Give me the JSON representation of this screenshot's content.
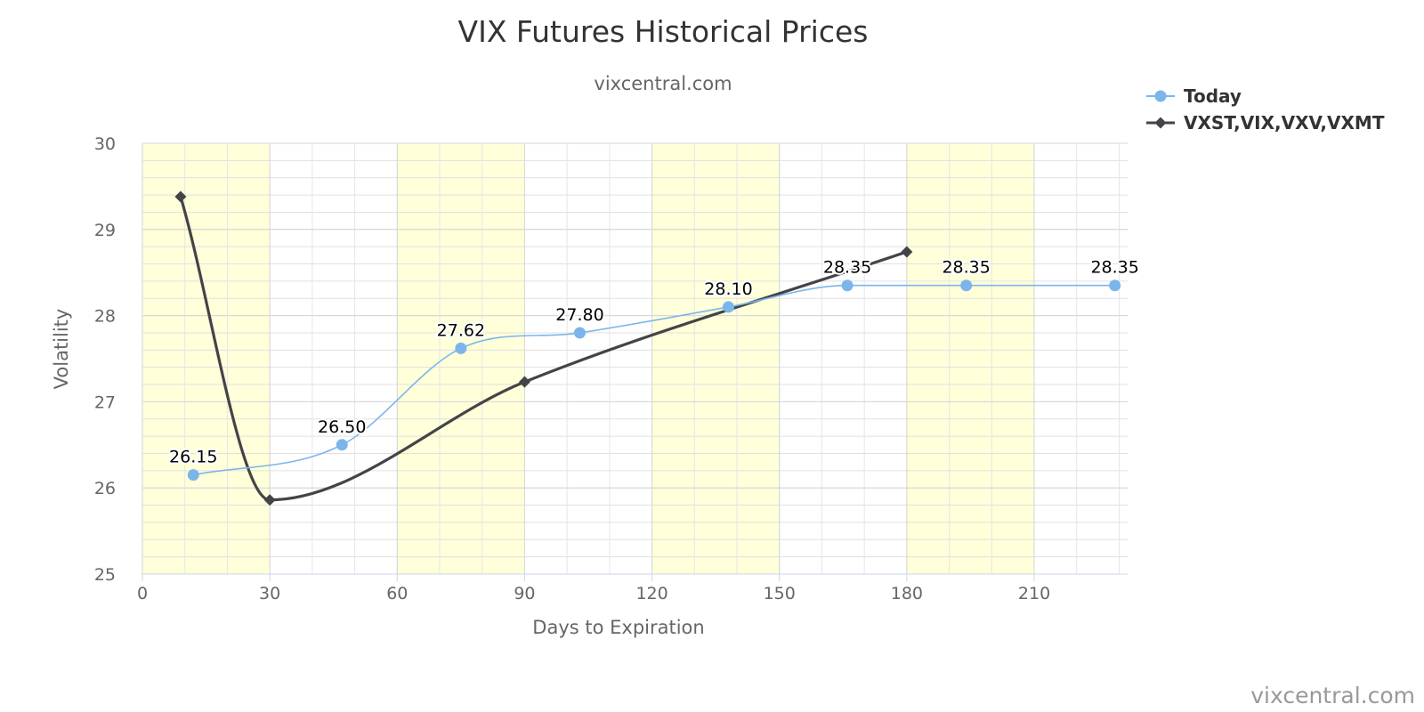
{
  "chart_data": {
    "type": "line",
    "title": "VIX Futures Historical Prices",
    "subtitle": "vixcentral.com",
    "credit": "vixcentral.com",
    "xlabel": "Days to Expiration",
    "ylabel": "Volatility",
    "xlim": [
      0,
      232
    ],
    "ylim": [
      25,
      30
    ],
    "x_ticks": [
      0,
      30,
      60,
      90,
      120,
      150,
      180,
      210
    ],
    "y_ticks": [
      25,
      26,
      27,
      28,
      29,
      30
    ],
    "x_minor_step": 10,
    "y_minor_step": 0.2,
    "bands": [
      [
        0,
        30
      ],
      [
        60,
        90
      ],
      [
        120,
        150
      ],
      [
        180,
        210
      ]
    ],
    "band_color": "#ffffd9",
    "grid": true,
    "legend_position": "top-right",
    "series": [
      {
        "name": "Today",
        "color": "#7cb5ec",
        "marker": "circle",
        "smooth": true,
        "show_labels": true,
        "points": [
          {
            "x": 12,
            "y": 26.15,
            "label": "26.15"
          },
          {
            "x": 47,
            "y": 26.5,
            "label": "26.50"
          },
          {
            "x": 75,
            "y": 27.62,
            "label": "27.62"
          },
          {
            "x": 103,
            "y": 27.8,
            "label": "27.80"
          },
          {
            "x": 138,
            "y": 28.1,
            "label": "28.10"
          },
          {
            "x": 166,
            "y": 28.35,
            "label": "28.35"
          },
          {
            "x": 194,
            "y": 28.35,
            "label": "28.35"
          },
          {
            "x": 229,
            "y": 28.35,
            "label": "28.35"
          }
        ]
      },
      {
        "name": "VXST,VIX,VXV,VXMT",
        "color": "#434348",
        "marker": "diamond",
        "smooth": true,
        "show_labels": false,
        "points": [
          {
            "x": 9,
            "y": 29.38
          },
          {
            "x": 30,
            "y": 25.86
          },
          {
            "x": 90,
            "y": 27.23
          },
          {
            "x": 180,
            "y": 28.74
          }
        ]
      }
    ]
  }
}
